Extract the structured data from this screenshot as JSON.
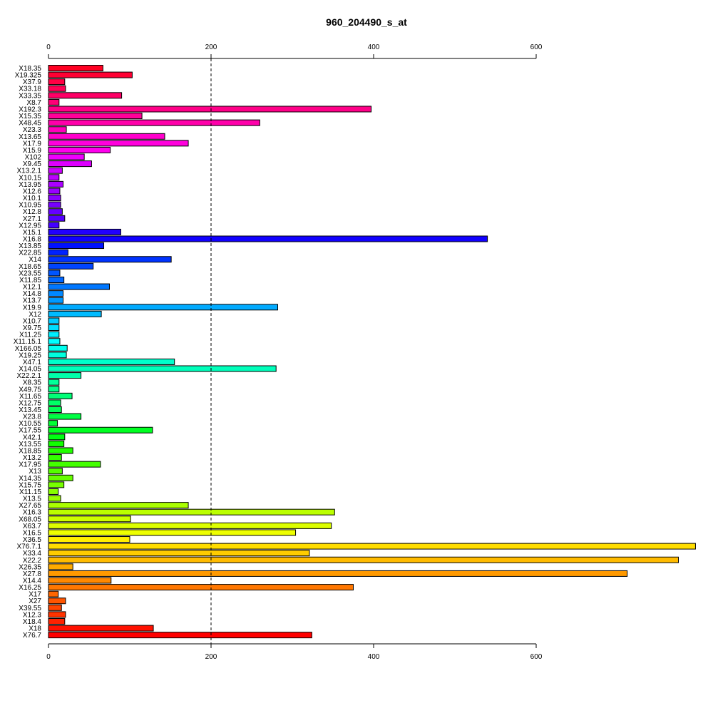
{
  "chart_data": {
    "type": "bar",
    "orientation": "horizontal",
    "title": "960_204490_s_at",
    "xlabel": "",
    "ylabel": "",
    "xlim": [
      0,
      800
    ],
    "xticks": [
      0,
      200,
      400,
      600
    ],
    "reference_line": 200,
    "grid": false,
    "legend": "none",
    "categories": [
      "X18.35",
      "X19.325",
      "X37.9",
      "X33.18",
      "X33.35",
      "X8.7",
      "X192.3",
      "X15.35",
      "X48.45",
      "X23.3",
      "X13.65",
      "X17.9",
      "X15.9",
      "X102",
      "X9.45",
      "X13.2.1",
      "X10.15",
      "X13.95",
      "X12.6",
      "X10.1",
      "X10.95",
      "X12.8",
      "X27.1",
      "X12.95",
      "X15.1",
      "X16.8",
      "X13.85",
      "X22.85",
      "X14",
      "X18.65",
      "X23.55",
      "X11.85",
      "X12.1",
      "X14.8",
      "X13.7",
      "X19.9",
      "X12",
      "X10.7",
      "X9.75",
      "X11.25",
      "X11.15.1",
      "X166.05",
      "X19.25",
      "X47.1",
      "X14.05",
      "X22.2.1",
      "X8.35",
      "X49.75",
      "X11.65",
      "X12.75",
      "X13.45",
      "X23.8",
      "X10.55",
      "X17.55",
      "X42.1",
      "X13.55",
      "X18.85",
      "X13.2",
      "X17.95",
      "X13",
      "X14.35",
      "X15.75",
      "X11.15",
      "X13.5",
      "X27.65",
      "X16.3",
      "X68.05",
      "X63.7",
      "X16.5",
      "X36.5",
      "X76.7.1",
      "X33.4",
      "X22.2",
      "X26.35",
      "X27.8",
      "X14.4",
      "X16.25",
      "X17",
      "X27",
      "X39.55",
      "X12.3",
      "X18.4",
      "X18",
      "X76.7"
    ],
    "values": [
      67,
      103,
      20,
      21,
      90,
      13,
      397,
      115,
      260,
      22,
      143,
      172,
      76,
      44,
      53,
      17,
      13,
      18,
      14,
      15,
      15,
      17,
      20,
      13,
      89,
      540,
      68,
      24,
      151,
      55,
      14,
      19,
      75,
      18,
      18,
      282,
      65,
      13,
      13,
      13,
      14,
      23,
      22,
      155,
      280,
      40,
      13,
      13,
      29,
      15,
      16,
      40,
      11,
      128,
      20,
      19,
      30,
      16,
      64,
      17,
      30,
      19,
      12,
      15,
      172,
      352,
      101,
      348,
      304,
      100,
      796,
      321,
      775,
      30,
      712,
      77,
      375,
      12,
      21,
      16,
      21,
      20,
      129,
      324
    ],
    "colors": [
      "#ff0022",
      "#ff0033",
      "#ff0044",
      "#ff0055",
      "#ff0066",
      "#ff0077",
      "#ff0088",
      "#ff0099",
      "#ff00aa",
      "#ff00bb",
      "#ff00cc",
      "#ff00dd",
      "#ff00ee",
      "#ee00ff",
      "#dd00ff",
      "#cc00ff",
      "#bb00ff",
      "#aa00ff",
      "#9900ff",
      "#8800ff",
      "#7700ff",
      "#6600ff",
      "#5500ff",
      "#4400ff",
      "#2200ff",
      "#1100ff",
      "#0011ff",
      "#0022ff",
      "#0033ff",
      "#0044ff",
      "#0055ff",
      "#0066ff",
      "#0077ff",
      "#0088ff",
      "#0099ff",
      "#00aaff",
      "#00bbff",
      "#00ccff",
      "#00ddff",
      "#00eeff",
      "#00ffff",
      "#00ffee",
      "#00ffdd",
      "#00ffcc",
      "#00ffbb",
      "#00ffaa",
      "#00ff99",
      "#00ff88",
      "#00ff77",
      "#00ff66",
      "#00ff55",
      "#00ff44",
      "#00ff33",
      "#00ff22",
      "#00ff11",
      "#11ff00",
      "#22ff00",
      "#33ff00",
      "#44ff00",
      "#55ff00",
      "#66ff00",
      "#77ff00",
      "#88ff00",
      "#99ff00",
      "#aaff00",
      "#bbff00",
      "#ccff00",
      "#ddff00",
      "#eeff00",
      "#ffee00",
      "#ffdd00",
      "#ffcc00",
      "#ffbb00",
      "#ffaa00",
      "#ff9900",
      "#ff8800",
      "#ff7700",
      "#ff6600",
      "#ff5500",
      "#ff4400",
      "#ff3300",
      "#ff2200",
      "#ff1100",
      "#ff0000"
    ]
  }
}
